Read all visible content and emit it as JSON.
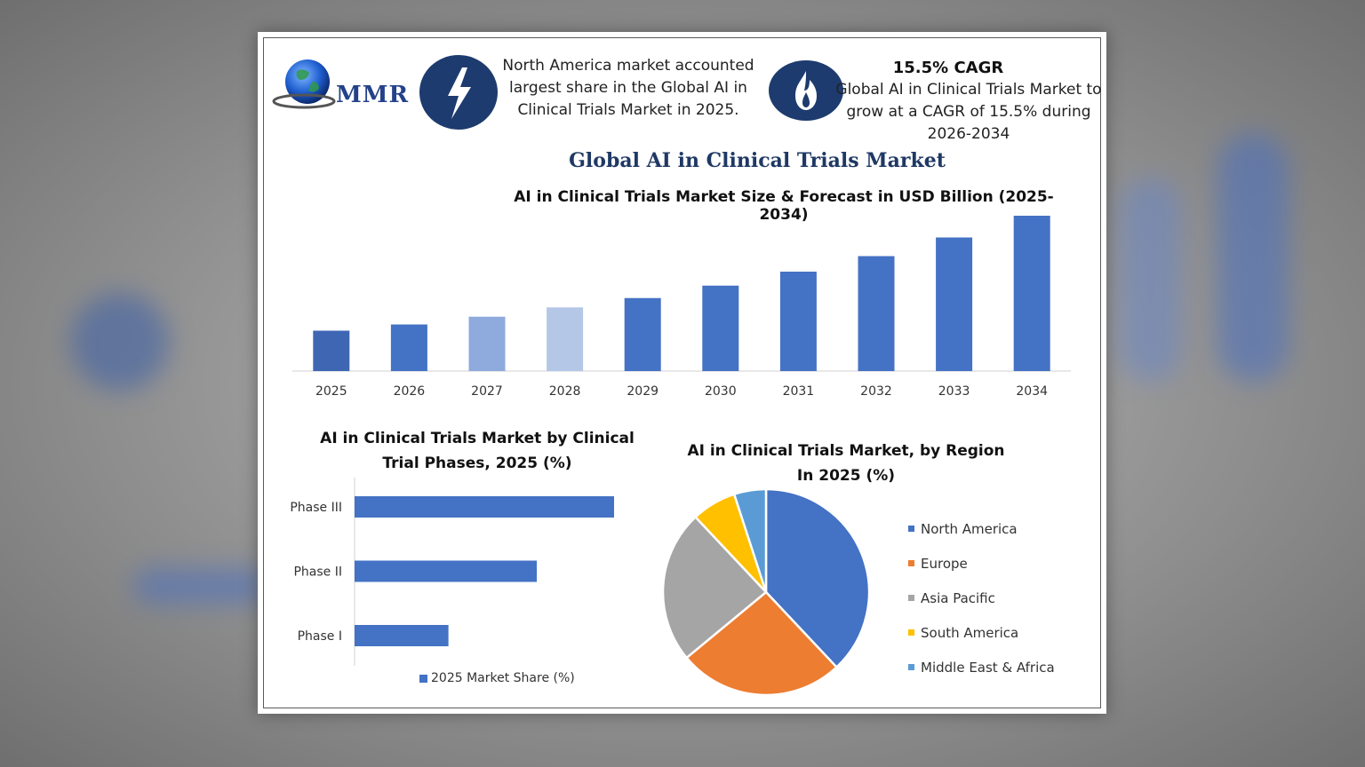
{
  "header": {
    "logo_text": "MMR",
    "info1_text": "North America market accounted largest share in the Global AI in Clinical Trials Market in 2025.",
    "cagr_title": "15.5% CAGR",
    "cagr_text": "Global AI in Clinical Trials Market to grow at a CAGR of 15.5% during 2026-2034",
    "icons": [
      "lightning-icon",
      "flame-icon",
      "globe-icon"
    ]
  },
  "main_title": "Global AI in Clinical Trials Market",
  "colors": {
    "primary_blue": "#4472c4",
    "dark_navy": "#1d3b6e",
    "orange": "#ed7d31",
    "gray": "#a5a5a5",
    "yellow": "#ffc000",
    "light_blue": "#5b9bd5"
  },
  "chart_data": [
    {
      "type": "bar",
      "title": "AI in Clinical Trials Market Size & Forecast in USD Billion (2025-2034)",
      "categories": [
        "2025",
        "2026",
        "2027",
        "2028",
        "2029",
        "2030",
        "2031",
        "2032",
        "2033",
        "2034"
      ],
      "values": [
        2.6,
        3.0,
        3.5,
        4.1,
        4.7,
        5.5,
        6.4,
        7.4,
        8.6,
        10.0
      ],
      "colors": [
        "#3e66b3",
        "#4472c4",
        "#8faadc",
        "#b4c7e7",
        "#4472c4",
        "#4472c4",
        "#4472c4",
        "#4472c4",
        "#4472c4",
        "#4472c4"
      ],
      "xlabel": "",
      "ylabel": "",
      "ylim": [
        0,
        10
      ],
      "grid": false
    },
    {
      "type": "bar",
      "orientation": "horizontal",
      "title": "AI in Clinical Trials Market by Clinical Trial Phases, 2025 (%)",
      "categories": [
        "Phase III",
        "Phase II",
        "Phase I"
      ],
      "series": [
        {
          "name": "2025 Market Share (%)",
          "values": [
            47,
            33,
            17
          ]
        }
      ],
      "xlim": [
        0,
        50
      ],
      "legend": "bottom"
    },
    {
      "type": "pie",
      "title": "AI in Clinical Trials Market, by Region In 2025 (%)",
      "labels": [
        "North America",
        "Europe",
        "Asia Pacific",
        "South America",
        "Middle East & Africa"
      ],
      "values": [
        38,
        26,
        24,
        7,
        5
      ],
      "colors": [
        "#4472c4",
        "#ed7d31",
        "#a5a5a5",
        "#ffc000",
        "#5b9bd5"
      ],
      "legend": "right"
    }
  ]
}
